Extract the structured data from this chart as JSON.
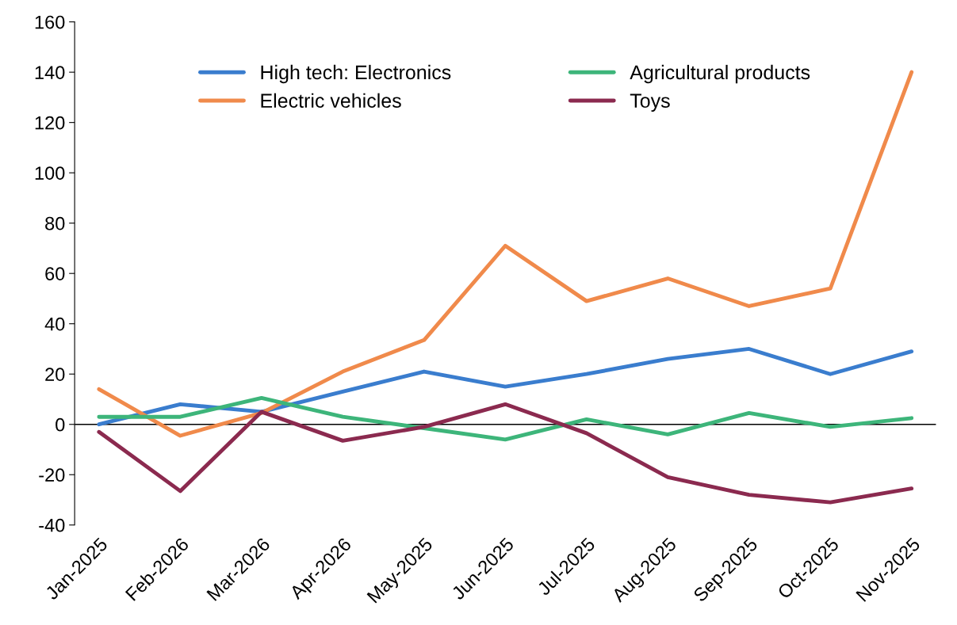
{
  "chart_data": {
    "type": "line",
    "categories": [
      "Jan-2025",
      "Feb-2026",
      "Mar-2026",
      "Apr-2026",
      "May-2025",
      "Jun-2025",
      "Jul-2025",
      "Aug-2025",
      "Sep-2025",
      "Oct-2025",
      "Nov-2025"
    ],
    "series": [
      {
        "name": "High tech: Electronics",
        "color": "#3a7dce",
        "values": [
          0,
          8,
          5,
          13,
          21,
          15,
          20,
          26,
          30,
          20,
          29
        ]
      },
      {
        "name": "Electric vehicles",
        "color": "#f08a4b",
        "values": [
          14,
          -4.5,
          4.5,
          21,
          33.5,
          71,
          49,
          58,
          47,
          54,
          140
        ]
      },
      {
        "name": "Agricultural products",
        "color": "#3db57a",
        "values": [
          3,
          3,
          10.5,
          3,
          -1.5,
          -6,
          2,
          -4,
          4.5,
          -1,
          2.5
        ]
      },
      {
        "name": "Toys",
        "color": "#8b2a4f",
        "values": [
          -3,
          -26.5,
          5,
          -6.5,
          -1,
          8,
          -3.5,
          -21,
          -28,
          -31,
          -25.5
        ]
      }
    ],
    "ylim": [
      -40,
      160
    ],
    "yticks": [
      -40,
      -20,
      0,
      20,
      40,
      60,
      80,
      100,
      120,
      140,
      160
    ],
    "ref_lines": [
      {
        "axis": "y",
        "value": 0,
        "color": "#000000"
      }
    ],
    "grid": false,
    "legend": "top",
    "marker": "none",
    "line_style": "solid"
  }
}
